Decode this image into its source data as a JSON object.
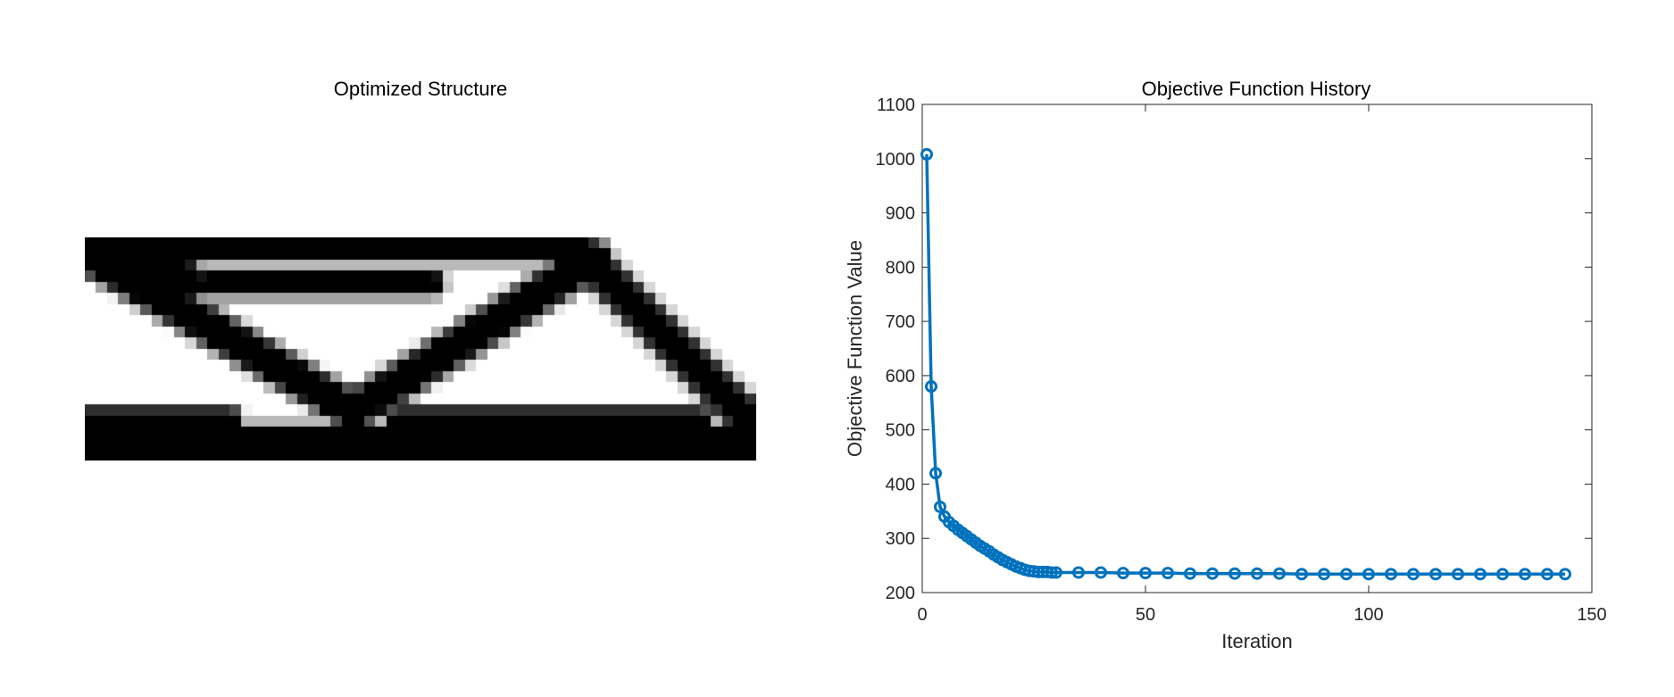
{
  "structure_plot": {
    "title": "Optimized Structure"
  },
  "chart_data": {
    "type": "line",
    "title": "Objective Function History",
    "xlabel": "Iteration",
    "ylabel": "Objective Function Value",
    "xlim": [
      0,
      150
    ],
    "ylim": [
      200,
      1100
    ],
    "xticks": [
      0,
      50,
      100,
      150
    ],
    "yticks": [
      200,
      300,
      400,
      500,
      600,
      700,
      800,
      900,
      1000,
      1100
    ],
    "grid": false,
    "marker": "circle",
    "color": "#0072BD",
    "series": [
      {
        "x": [
          1,
          2,
          3,
          4,
          5,
          6,
          7,
          8,
          9,
          10,
          11,
          12,
          13,
          14,
          15,
          16,
          17,
          18,
          19,
          20,
          21,
          22,
          23,
          24,
          25,
          26,
          27,
          28,
          29,
          30,
          35,
          40,
          45,
          50,
          55,
          60,
          65,
          70,
          75,
          80,
          85,
          90,
          95,
          100,
          105,
          110,
          115,
          120,
          125,
          130,
          135,
          140,
          144
        ],
        "y": [
          1008,
          580,
          420,
          358,
          340,
          330,
          323,
          316,
          310,
          304,
          298,
          292,
          286,
          281,
          276,
          270,
          265,
          260,
          256,
          252,
          248,
          245,
          242,
          240,
          239,
          238,
          238,
          238,
          237,
          237,
          237,
          237,
          236,
          236,
          236,
          235,
          235,
          235,
          235,
          235,
          234,
          234,
          234,
          234,
          234,
          234,
          234,
          234,
          234,
          234,
          234,
          234,
          234
        ]
      }
    ]
  }
}
